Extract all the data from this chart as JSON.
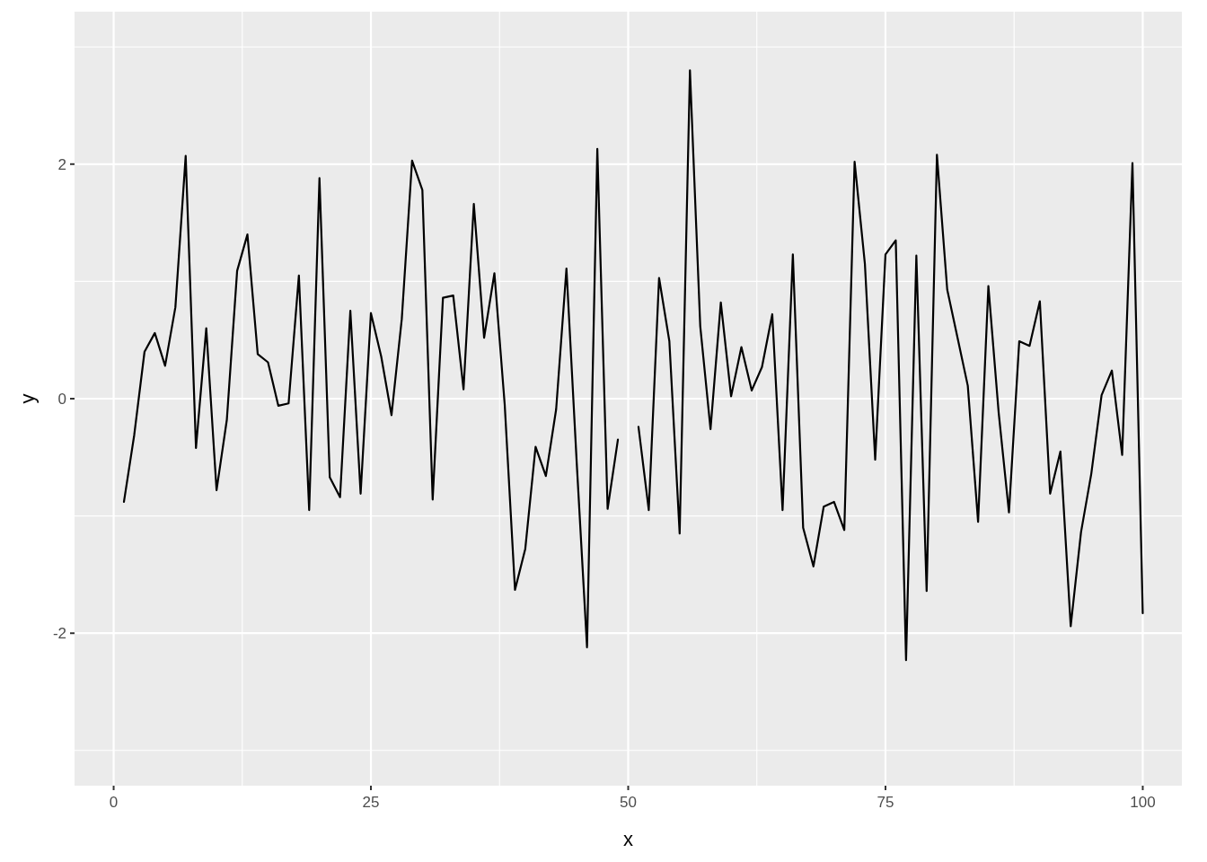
{
  "chart_data": {
    "type": "line",
    "xlabel": "x",
    "ylabel": "y",
    "x": [
      1,
      2,
      3,
      4,
      5,
      6,
      7,
      8,
      9,
      10,
      11,
      12,
      13,
      14,
      15,
      16,
      17,
      18,
      19,
      20,
      21,
      22,
      23,
      24,
      25,
      26,
      27,
      28,
      29,
      30,
      31,
      32,
      33,
      34,
      35,
      36,
      37,
      38,
      39,
      40,
      41,
      42,
      43,
      44,
      45,
      46,
      47,
      48,
      49,
      50,
      51,
      52,
      53,
      54,
      55,
      56,
      57,
      58,
      59,
      60,
      61,
      62,
      63,
      64,
      65,
      66,
      67,
      68,
      69,
      70,
      71,
      72,
      73,
      74,
      75,
      76,
      77,
      78,
      79,
      80,
      81,
      82,
      83,
      84,
      85,
      86,
      87,
      88,
      89,
      90,
      91,
      92,
      93,
      94,
      95,
      96,
      97,
      98,
      99,
      100
    ],
    "series": [
      {
        "color": "#000000",
        "values": [
          -0.88,
          -0.31,
          0.4,
          0.56,
          0.28,
          0.78,
          2.07,
          -0.42,
          0.6,
          -0.78,
          -0.18,
          1.09,
          1.4,
          0.38,
          0.31,
          -0.06,
          -0.04,
          1.05,
          -0.95,
          1.88,
          -0.67,
          -0.84,
          0.75,
          -0.81,
          0.73,
          0.36,
          -0.14,
          0.68,
          2.03,
          1.78,
          -0.86,
          0.86,
          0.88,
          0.08,
          1.66,
          0.52,
          1.07,
          -0.05,
          -1.63,
          -1.28,
          -0.41,
          -0.66,
          -0.09,
          1.11,
          -0.55,
          -2.12,
          2.13,
          -0.94,
          -0.35,
          null,
          -0.24,
          -0.95,
          1.03,
          0.49,
          -1.15,
          2.8,
          0.62,
          -0.26,
          0.82,
          0.02,
          0.44,
          0.07,
          0.27,
          0.72,
          -0.95,
          1.23,
          -1.1,
          -1.43,
          -0.92,
          -0.88,
          -1.12,
          2.02,
          1.15,
          -0.52,
          1.23,
          1.35,
          -2.23,
          1.22,
          -1.64,
          2.08,
          0.93,
          0.52,
          0.11,
          -1.05,
          0.96,
          -0.12,
          -0.97,
          0.49,
          0.45,
          0.83,
          -0.81,
          -0.45,
          -1.94,
          -1.14,
          -0.64,
          0.03,
          0.24,
          -0.48,
          2.01,
          -1.83
        ]
      }
    ],
    "xlim": [
      -3.8,
      103.8
    ],
    "ylim": [
      -3.3,
      3.3
    ],
    "xticks": [
      0,
      25,
      50,
      75,
      100
    ],
    "yticks": [
      -2,
      0,
      2
    ],
    "grid": true,
    "marker": "none",
    "line_style": "solid"
  }
}
